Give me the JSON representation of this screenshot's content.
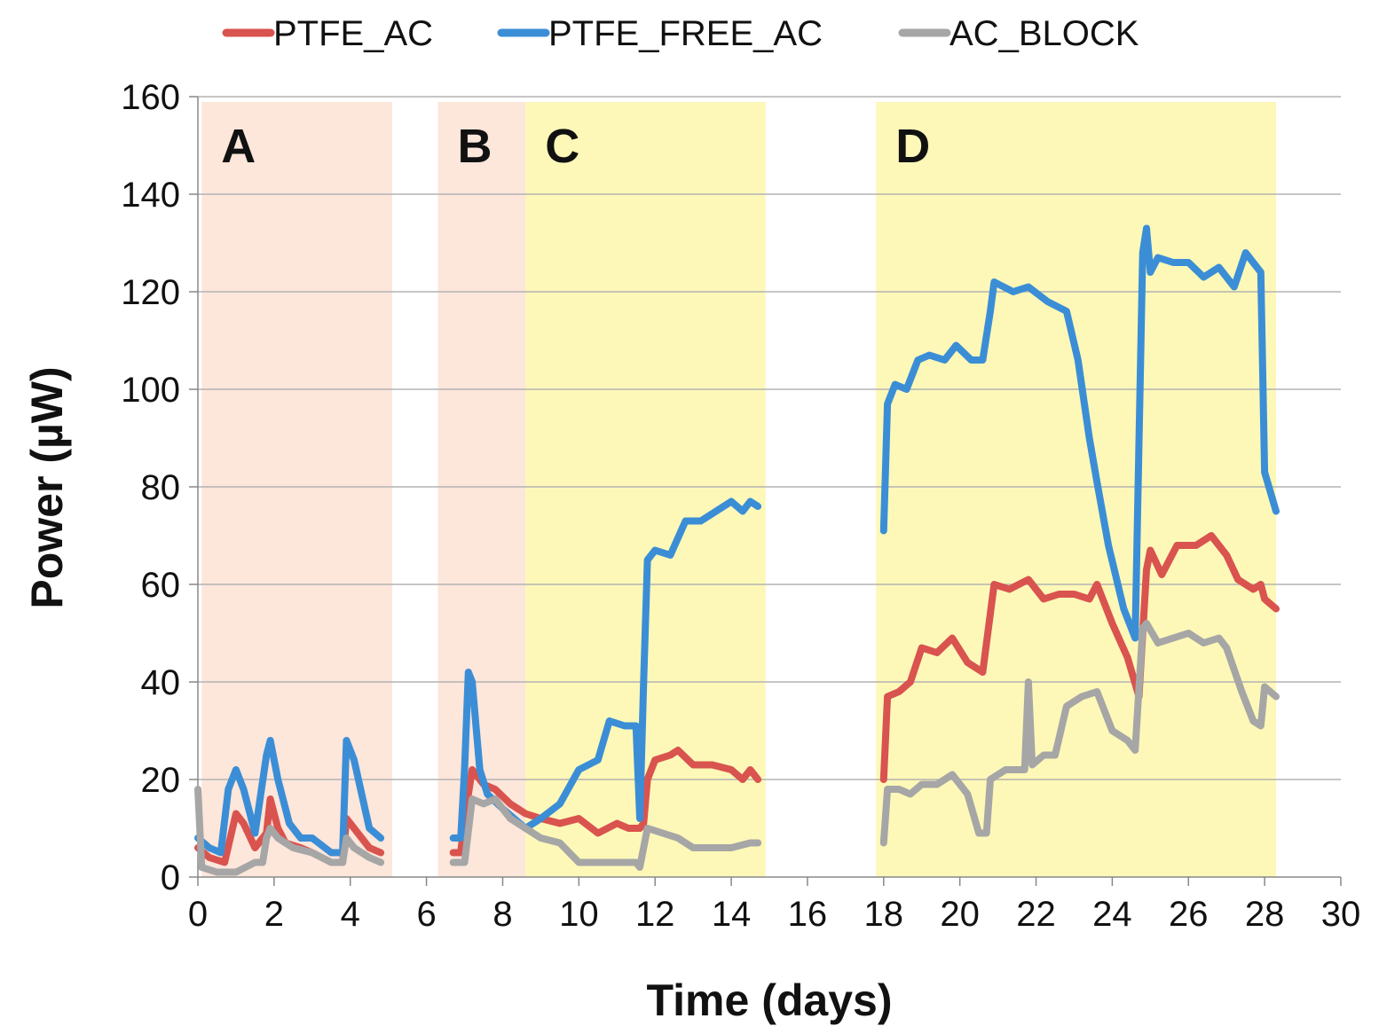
{
  "chart_data": {
    "type": "line",
    "title": "",
    "xlabel": "Time (days)",
    "ylabel": "Power (µW)",
    "xlim": [
      0,
      30
    ],
    "ylim": [
      0,
      160
    ],
    "x_ticks": [
      0,
      2,
      4,
      6,
      8,
      10,
      12,
      14,
      16,
      18,
      20,
      22,
      24,
      26,
      28,
      30
    ],
    "y_ticks": [
      0,
      20,
      40,
      60,
      80,
      100,
      120,
      140,
      160
    ],
    "grid": "horizontal",
    "legend_position": "top",
    "regions": [
      {
        "label": "A",
        "x_start": 0.1,
        "x_end": 5.1,
        "color": "#fde6da"
      },
      {
        "label": "B",
        "x_start": 6.3,
        "x_end": 8.6,
        "color": "#fde6da"
      },
      {
        "label": "C",
        "x_start": 8.6,
        "x_end": 14.9,
        "color": "#fdf8b8"
      },
      {
        "label": "D",
        "x_start": 17.8,
        "x_end": 28.3,
        "color": "#fdf8b8"
      }
    ],
    "series": [
      {
        "name": "PTFE_AC",
        "color": "#d9534f",
        "segments": [
          [
            [
              0,
              6
            ],
            [
              0.3,
              4
            ],
            [
              0.7,
              3
            ],
            [
              1.0,
              13
            ],
            [
              1.2,
              11
            ],
            [
              1.5,
              6
            ],
            [
              1.8,
              9
            ],
            [
              1.9,
              16
            ],
            [
              2.1,
              10
            ],
            [
              2.3,
              7
            ],
            [
              2.7,
              6
            ],
            [
              3.0,
              5
            ],
            [
              3.5,
              3
            ],
            [
              3.8,
              3
            ],
            [
              3.9,
              12
            ],
            [
              4.1,
              10
            ],
            [
              4.5,
              6
            ],
            [
              4.8,
              5
            ]
          ],
          [
            [
              6.7,
              5
            ],
            [
              6.9,
              5
            ],
            [
              7.0,
              12
            ],
            [
              7.2,
              22
            ],
            [
              7.5,
              19
            ],
            [
              7.8,
              18
            ],
            [
              8.2,
              15
            ],
            [
              8.6,
              13
            ],
            [
              9.0,
              12
            ],
            [
              9.5,
              11
            ],
            [
              10.0,
              12
            ],
            [
              10.5,
              9
            ],
            [
              11.0,
              11
            ],
            [
              11.3,
              10
            ],
            [
              11.6,
              10
            ],
            [
              11.7,
              11
            ],
            [
              11.8,
              20
            ],
            [
              12.0,
              24
            ],
            [
              12.4,
              25
            ],
            [
              12.6,
              26
            ],
            [
              13.0,
              23
            ],
            [
              13.5,
              23
            ],
            [
              14.0,
              22
            ],
            [
              14.3,
              20
            ],
            [
              14.5,
              22
            ],
            [
              14.7,
              20
            ]
          ],
          [
            [
              18.0,
              20
            ],
            [
              18.1,
              37
            ],
            [
              18.4,
              38
            ],
            [
              18.7,
              40
            ],
            [
              19.0,
              47
            ],
            [
              19.4,
              46
            ],
            [
              19.8,
              49
            ],
            [
              20.2,
              44
            ],
            [
              20.6,
              42
            ],
            [
              20.8,
              54
            ],
            [
              20.9,
              60
            ],
            [
              21.3,
              59
            ],
            [
              21.8,
              61
            ],
            [
              22.2,
              57
            ],
            [
              22.6,
              58
            ],
            [
              23.0,
              58
            ],
            [
              23.4,
              57
            ],
            [
              23.6,
              60
            ],
            [
              24.0,
              52
            ],
            [
              24.4,
              45
            ],
            [
              24.7,
              37
            ],
            [
              24.9,
              63
            ],
            [
              25.0,
              67
            ],
            [
              25.3,
              62
            ],
            [
              25.7,
              68
            ],
            [
              26.2,
              68
            ],
            [
              26.6,
              70
            ],
            [
              27.0,
              66
            ],
            [
              27.3,
              61
            ],
            [
              27.7,
              59
            ],
            [
              27.9,
              60
            ],
            [
              28.0,
              57
            ],
            [
              28.3,
              55
            ]
          ]
        ]
      },
      {
        "name": "PTFE_FREE_AC",
        "color": "#3b8ed6",
        "segments": [
          [
            [
              0,
              8
            ],
            [
              0.3,
              6
            ],
            [
              0.6,
              5
            ],
            [
              0.8,
              18
            ],
            [
              1.0,
              22
            ],
            [
              1.2,
              18
            ],
            [
              1.5,
              9
            ],
            [
              1.8,
              25
            ],
            [
              1.9,
              28
            ],
            [
              2.1,
              20
            ],
            [
              2.4,
              11
            ],
            [
              2.7,
              8
            ],
            [
              3.0,
              8
            ],
            [
              3.5,
              5
            ],
            [
              3.8,
              5
            ],
            [
              3.9,
              28
            ],
            [
              4.1,
              24
            ],
            [
              4.5,
              10
            ],
            [
              4.8,
              8
            ]
          ],
          [
            [
              6.7,
              8
            ],
            [
              6.9,
              8
            ],
            [
              7.0,
              22
            ],
            [
              7.1,
              42
            ],
            [
              7.2,
              40
            ],
            [
              7.4,
              22
            ],
            [
              7.6,
              17
            ],
            [
              8.0,
              14
            ],
            [
              8.6,
              10
            ],
            [
              9.0,
              12
            ],
            [
              9.5,
              15
            ],
            [
              10.0,
              22
            ],
            [
              10.5,
              24
            ],
            [
              10.8,
              32
            ],
            [
              11.2,
              31
            ],
            [
              11.5,
              31
            ],
            [
              11.6,
              12
            ],
            [
              11.7,
              40
            ],
            [
              11.8,
              65
            ],
            [
              12.0,
              67
            ],
            [
              12.4,
              66
            ],
            [
              12.8,
              73
            ],
            [
              13.2,
              73
            ],
            [
              13.6,
              75
            ],
            [
              14.0,
              77
            ],
            [
              14.3,
              75
            ],
            [
              14.5,
              77
            ],
            [
              14.7,
              76
            ]
          ],
          [
            [
              18.0,
              71
            ],
            [
              18.1,
              97
            ],
            [
              18.3,
              101
            ],
            [
              18.6,
              100
            ],
            [
              18.9,
              106
            ],
            [
              19.2,
              107
            ],
            [
              19.6,
              106
            ],
            [
              19.9,
              109
            ],
            [
              20.3,
              106
            ],
            [
              20.6,
              106
            ],
            [
              20.8,
              116
            ],
            [
              20.9,
              122
            ],
            [
              21.4,
              120
            ],
            [
              21.8,
              121
            ],
            [
              22.3,
              118
            ],
            [
              22.8,
              116
            ],
            [
              23.1,
              106
            ],
            [
              23.4,
              90
            ],
            [
              23.6,
              81
            ],
            [
              23.9,
              68
            ],
            [
              24.3,
              55
            ],
            [
              24.6,
              49
            ],
            [
              24.8,
              128
            ],
            [
              24.9,
              133
            ],
            [
              25.0,
              124
            ],
            [
              25.2,
              127
            ],
            [
              25.6,
              126
            ],
            [
              26.0,
              126
            ],
            [
              26.4,
              123
            ],
            [
              26.8,
              125
            ],
            [
              27.2,
              121
            ],
            [
              27.5,
              128
            ],
            [
              27.9,
              124
            ],
            [
              28.0,
              83
            ],
            [
              28.3,
              75
            ]
          ]
        ]
      },
      {
        "name": "AC_BLOCK",
        "color": "#a6a6a6",
        "segments": [
          [
            [
              0,
              18
            ],
            [
              0.1,
              2
            ],
            [
              0.5,
              1
            ],
            [
              1.0,
              1
            ],
            [
              1.5,
              3
            ],
            [
              1.7,
              3
            ],
            [
              1.8,
              8
            ],
            [
              1.9,
              10
            ],
            [
              2.1,
              8
            ],
            [
              2.5,
              6
            ],
            [
              3.0,
              5
            ],
            [
              3.5,
              3
            ],
            [
              3.8,
              3
            ],
            [
              3.9,
              8
            ],
            [
              4.1,
              6
            ],
            [
              4.5,
              4
            ],
            [
              4.8,
              3
            ]
          ],
          [
            [
              6.7,
              3
            ],
            [
              7.0,
              3
            ],
            [
              7.2,
              16
            ],
            [
              7.5,
              15
            ],
            [
              7.8,
              16
            ],
            [
              8.2,
              12
            ],
            [
              8.6,
              10
            ],
            [
              9.0,
              8
            ],
            [
              9.5,
              7
            ],
            [
              10.0,
              3
            ],
            [
              10.5,
              3
            ],
            [
              11.0,
              3
            ],
            [
              11.5,
              3
            ],
            [
              11.6,
              2
            ],
            [
              11.8,
              10
            ],
            [
              12.2,
              9
            ],
            [
              12.6,
              8
            ],
            [
              13.0,
              6
            ],
            [
              13.5,
              6
            ],
            [
              14.0,
              6
            ],
            [
              14.5,
              7
            ],
            [
              14.7,
              7
            ]
          ],
          [
            [
              18.0,
              7
            ],
            [
              18.1,
              18
            ],
            [
              18.4,
              18
            ],
            [
              18.7,
              17
            ],
            [
              19.0,
              19
            ],
            [
              19.4,
              19
            ],
            [
              19.8,
              21
            ],
            [
              20.2,
              17
            ],
            [
              20.5,
              9
            ],
            [
              20.7,
              9
            ],
            [
              20.8,
              20
            ],
            [
              21.2,
              22
            ],
            [
              21.7,
              22
            ],
            [
              21.8,
              40
            ],
            [
              21.9,
              23
            ],
            [
              22.2,
              25
            ],
            [
              22.5,
              25
            ],
            [
              22.8,
              35
            ],
            [
              23.2,
              37
            ],
            [
              23.6,
              38
            ],
            [
              24.0,
              30
            ],
            [
              24.4,
              28
            ],
            [
              24.6,
              26
            ],
            [
              24.8,
              51
            ],
            [
              24.9,
              52
            ],
            [
              25.2,
              48
            ],
            [
              25.6,
              49
            ],
            [
              26.0,
              50
            ],
            [
              26.4,
              48
            ],
            [
              26.8,
              49
            ],
            [
              27.0,
              47
            ],
            [
              27.4,
              38
            ],
            [
              27.7,
              32
            ],
            [
              27.9,
              31
            ],
            [
              28.0,
              39
            ],
            [
              28.3,
              37
            ]
          ]
        ]
      }
    ]
  }
}
